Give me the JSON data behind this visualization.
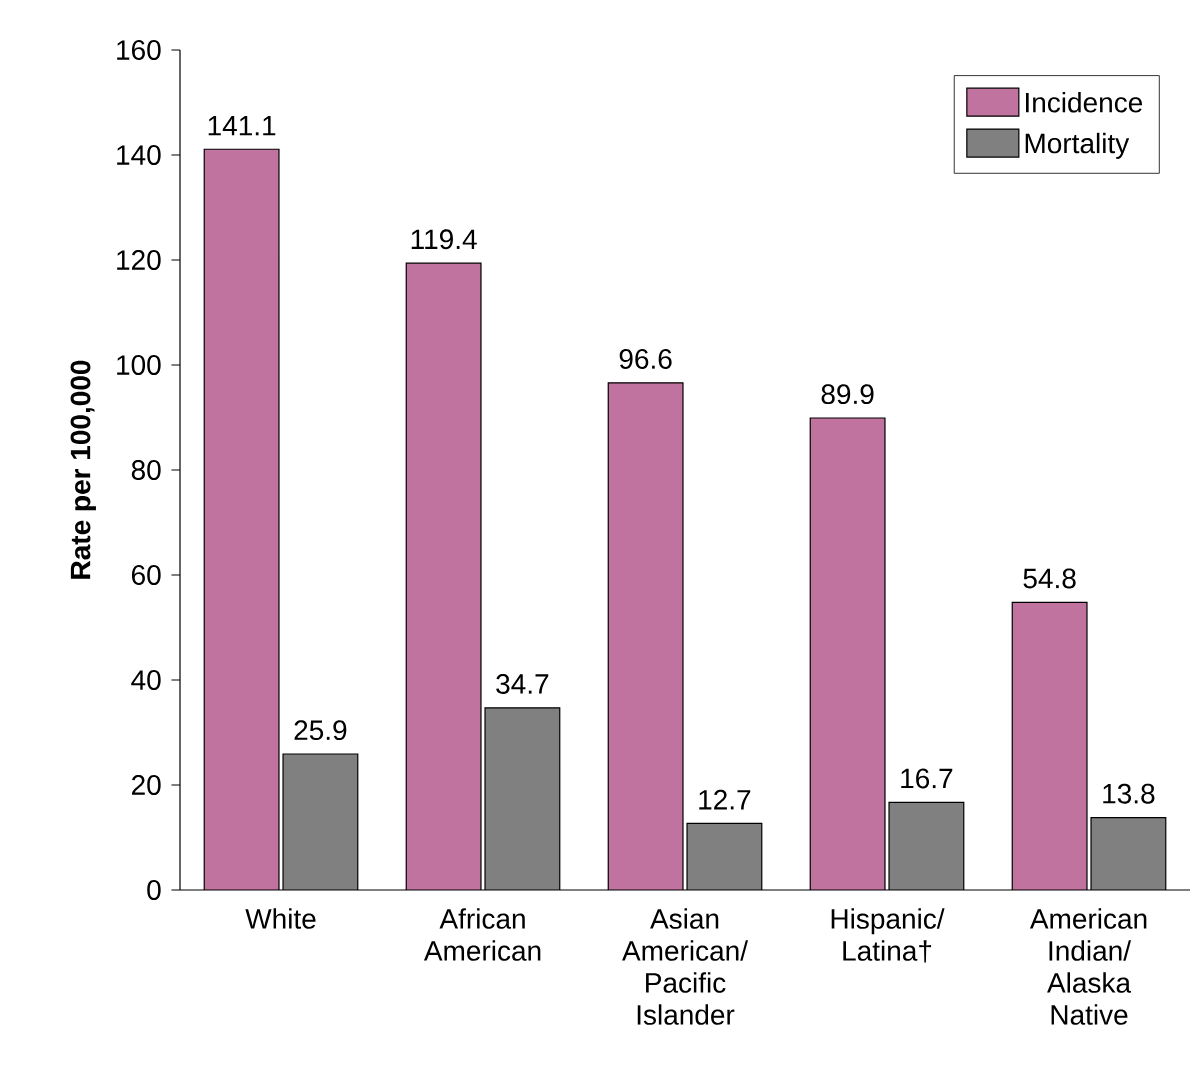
{
  "chart_data": {
    "type": "bar",
    "ylabel": "Rate per 100,000",
    "categories": [
      "White",
      "African American",
      "Asian American/ Pacific Islander",
      "Hispanic/ Latina†",
      "American Indian/ Alaska Native"
    ],
    "series": [
      {
        "name": "Incidence",
        "color": "#c0739f",
        "values": [
          141.1,
          119.4,
          96.6,
          89.9,
          54.8
        ]
      },
      {
        "name": "Mortality",
        "color": "#808080",
        "values": [
          25.9,
          34.7,
          12.7,
          16.7,
          13.8
        ]
      }
    ],
    "ylim": [
      0,
      160
    ],
    "yticks": [
      0,
      20,
      40,
      60,
      80,
      100,
      120,
      140,
      160
    ],
    "data_labels": true,
    "legend": "top right",
    "grid": false
  }
}
